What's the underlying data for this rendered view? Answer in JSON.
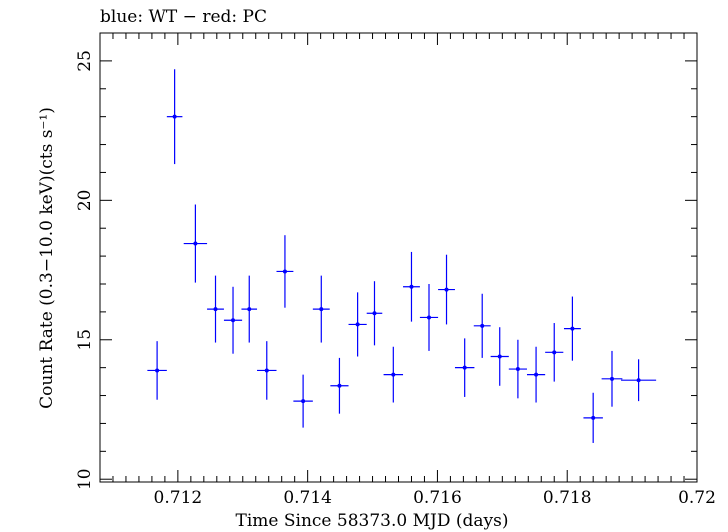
{
  "chart_data": {
    "type": "scatter",
    "title": "blue: WT − red: PC",
    "xlabel": "Time Since 58373.0 MJD (days)",
    "ylabel": "Count Rate (0.3−10.0 keV)(cts s⁻¹)",
    "xlim": [
      0.7108,
      0.72
    ],
    "ylim": [
      9.9,
      26.0
    ],
    "xticks": [
      0.712,
      0.714,
      0.716,
      0.718,
      0.72
    ],
    "xtick_labels": [
      "0.712",
      "0.714",
      "0.716",
      "0.718",
      "0.72"
    ],
    "yticks": [
      10,
      15,
      20,
      25
    ],
    "ytick_labels": [
      "10",
      "15",
      "20",
      "25"
    ],
    "grid": false,
    "series": [
      {
        "color": "#0000ff",
        "marker": "point-with-error-bars",
        "points": [
          {
            "x": 0.71168,
            "xerr": 0.00015,
            "y": 13.9,
            "yerr": 1.05
          },
          {
            "x": 0.71195,
            "xerr": 0.00012,
            "y": 23.0,
            "yerr": 1.7
          },
          {
            "x": 0.71227,
            "xerr": 0.00018,
            "y": 18.45,
            "yerr": 1.4
          },
          {
            "x": 0.71258,
            "xerr": 0.00013,
            "y": 16.1,
            "yerr": 1.2
          },
          {
            "x": 0.71285,
            "xerr": 0.00014,
            "y": 15.7,
            "yerr": 1.2
          },
          {
            "x": 0.7131,
            "xerr": 0.00012,
            "y": 16.1,
            "yerr": 1.2
          },
          {
            "x": 0.71337,
            "xerr": 0.00015,
            "y": 13.9,
            "yerr": 1.05
          },
          {
            "x": 0.71365,
            "xerr": 0.00013,
            "y": 17.45,
            "yerr": 1.3
          },
          {
            "x": 0.71393,
            "xerr": 0.00015,
            "y": 12.8,
            "yerr": 0.95
          },
          {
            "x": 0.71421,
            "xerr": 0.00013,
            "y": 16.1,
            "yerr": 1.2
          },
          {
            "x": 0.71449,
            "xerr": 0.00014,
            "y": 13.35,
            "yerr": 1.0
          },
          {
            "x": 0.71477,
            "xerr": 0.00014,
            "y": 15.55,
            "yerr": 1.15
          },
          {
            "x": 0.71503,
            "xerr": 0.00012,
            "y": 15.95,
            "yerr": 1.15
          },
          {
            "x": 0.71532,
            "xerr": 0.00015,
            "y": 13.75,
            "yerr": 1.0
          },
          {
            "x": 0.7156,
            "xerr": 0.00013,
            "y": 16.9,
            "yerr": 1.25
          },
          {
            "x": 0.71587,
            "xerr": 0.00014,
            "y": 15.8,
            "yerr": 1.2
          },
          {
            "x": 0.71614,
            "xerr": 0.00013,
            "y": 16.8,
            "yerr": 1.25
          },
          {
            "x": 0.71642,
            "xerr": 0.00015,
            "y": 14.0,
            "yerr": 1.05
          },
          {
            "x": 0.71669,
            "xerr": 0.00013,
            "y": 15.5,
            "yerr": 1.15
          },
          {
            "x": 0.71696,
            "xerr": 0.00014,
            "y": 14.4,
            "yerr": 1.05
          },
          {
            "x": 0.71724,
            "xerr": 0.00014,
            "y": 13.95,
            "yerr": 1.05
          },
          {
            "x": 0.71752,
            "xerr": 0.00014,
            "y": 13.75,
            "yerr": 1.0
          },
          {
            "x": 0.7178,
            "xerr": 0.00014,
            "y": 14.55,
            "yerr": 1.05
          },
          {
            "x": 0.71808,
            "xerr": 0.00013,
            "y": 15.4,
            "yerr": 1.15
          },
          {
            "x": 0.7184,
            "xerr": 0.00015,
            "y": 12.2,
            "yerr": 0.9
          },
          {
            "x": 0.71869,
            "xerr": 0.00016,
            "y": 13.6,
            "yerr": 1.0
          },
          {
            "x": 0.7191,
            "xerr": 0.00027,
            "y": 13.55,
            "yerr": 0.75
          }
        ]
      }
    ]
  }
}
